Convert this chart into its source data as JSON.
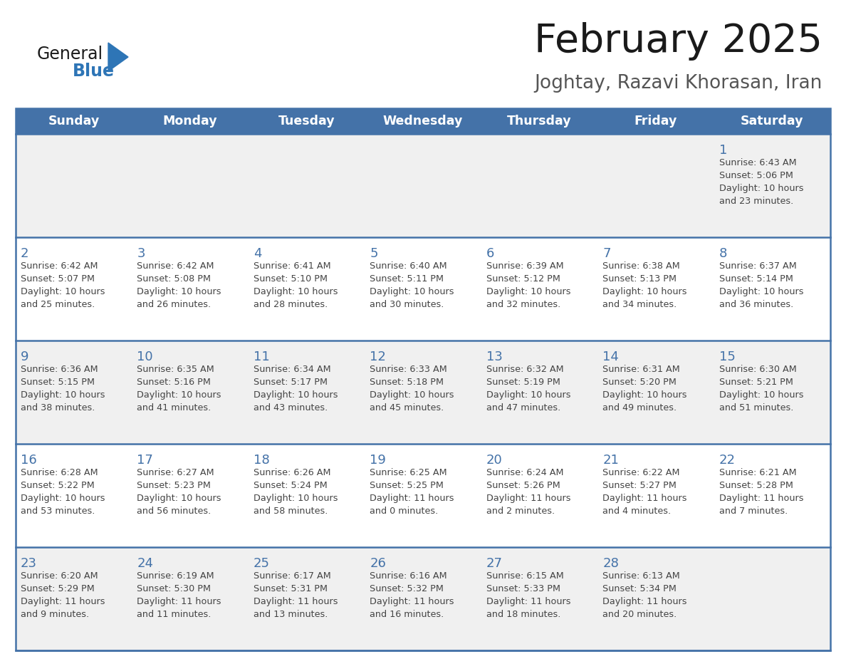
{
  "title": "February 2025",
  "subtitle": "Joghtay, Razavi Khorasan, Iran",
  "header_bg": "#4472a8",
  "header_text_color": "#ffffff",
  "cell_bg_light": "#f0f0f0",
  "cell_bg_white": "#ffffff",
  "text_color": "#444444",
  "day_num_color": "#4472a8",
  "border_color": "#4472a8",
  "days_of_week": [
    "Sunday",
    "Monday",
    "Tuesday",
    "Wednesday",
    "Thursday",
    "Friday",
    "Saturday"
  ],
  "calendar": [
    [
      null,
      null,
      null,
      null,
      null,
      null,
      {
        "day": "1",
        "sunrise": "6:43 AM",
        "sunset": "5:06 PM",
        "daylight": "10 hours",
        "daylight2": "and 23 minutes."
      }
    ],
    [
      {
        "day": "2",
        "sunrise": "6:42 AM",
        "sunset": "5:07 PM",
        "daylight": "10 hours",
        "daylight2": "and 25 minutes."
      },
      {
        "day": "3",
        "sunrise": "6:42 AM",
        "sunset": "5:08 PM",
        "daylight": "10 hours",
        "daylight2": "and 26 minutes."
      },
      {
        "day": "4",
        "sunrise": "6:41 AM",
        "sunset": "5:10 PM",
        "daylight": "10 hours",
        "daylight2": "and 28 minutes."
      },
      {
        "day": "5",
        "sunrise": "6:40 AM",
        "sunset": "5:11 PM",
        "daylight": "10 hours",
        "daylight2": "and 30 minutes."
      },
      {
        "day": "6",
        "sunrise": "6:39 AM",
        "sunset": "5:12 PM",
        "daylight": "10 hours",
        "daylight2": "and 32 minutes."
      },
      {
        "day": "7",
        "sunrise": "6:38 AM",
        "sunset": "5:13 PM",
        "daylight": "10 hours",
        "daylight2": "and 34 minutes."
      },
      {
        "day": "8",
        "sunrise": "6:37 AM",
        "sunset": "5:14 PM",
        "daylight": "10 hours",
        "daylight2": "and 36 minutes."
      }
    ],
    [
      {
        "day": "9",
        "sunrise": "6:36 AM",
        "sunset": "5:15 PM",
        "daylight": "10 hours",
        "daylight2": "and 38 minutes."
      },
      {
        "day": "10",
        "sunrise": "6:35 AM",
        "sunset": "5:16 PM",
        "daylight": "10 hours",
        "daylight2": "and 41 minutes."
      },
      {
        "day": "11",
        "sunrise": "6:34 AM",
        "sunset": "5:17 PM",
        "daylight": "10 hours",
        "daylight2": "and 43 minutes."
      },
      {
        "day": "12",
        "sunrise": "6:33 AM",
        "sunset": "5:18 PM",
        "daylight": "10 hours",
        "daylight2": "and 45 minutes."
      },
      {
        "day": "13",
        "sunrise": "6:32 AM",
        "sunset": "5:19 PM",
        "daylight": "10 hours",
        "daylight2": "and 47 minutes."
      },
      {
        "day": "14",
        "sunrise": "6:31 AM",
        "sunset": "5:20 PM",
        "daylight": "10 hours",
        "daylight2": "and 49 minutes."
      },
      {
        "day": "15",
        "sunrise": "6:30 AM",
        "sunset": "5:21 PM",
        "daylight": "10 hours",
        "daylight2": "and 51 minutes."
      }
    ],
    [
      {
        "day": "16",
        "sunrise": "6:28 AM",
        "sunset": "5:22 PM",
        "daylight": "10 hours",
        "daylight2": "and 53 minutes."
      },
      {
        "day": "17",
        "sunrise": "6:27 AM",
        "sunset": "5:23 PM",
        "daylight": "10 hours",
        "daylight2": "and 56 minutes."
      },
      {
        "day": "18",
        "sunrise": "6:26 AM",
        "sunset": "5:24 PM",
        "daylight": "10 hours",
        "daylight2": "and 58 minutes."
      },
      {
        "day": "19",
        "sunrise": "6:25 AM",
        "sunset": "5:25 PM",
        "daylight": "11 hours",
        "daylight2": "and 0 minutes."
      },
      {
        "day": "20",
        "sunrise": "6:24 AM",
        "sunset": "5:26 PM",
        "daylight": "11 hours",
        "daylight2": "and 2 minutes."
      },
      {
        "day": "21",
        "sunrise": "6:22 AM",
        "sunset": "5:27 PM",
        "daylight": "11 hours",
        "daylight2": "and 4 minutes."
      },
      {
        "day": "22",
        "sunrise": "6:21 AM",
        "sunset": "5:28 PM",
        "daylight": "11 hours",
        "daylight2": "and 7 minutes."
      }
    ],
    [
      {
        "day": "23",
        "sunrise": "6:20 AM",
        "sunset": "5:29 PM",
        "daylight": "11 hours",
        "daylight2": "and 9 minutes."
      },
      {
        "day": "24",
        "sunrise": "6:19 AM",
        "sunset": "5:30 PM",
        "daylight": "11 hours",
        "daylight2": "and 11 minutes."
      },
      {
        "day": "25",
        "sunrise": "6:17 AM",
        "sunset": "5:31 PM",
        "daylight": "11 hours",
        "daylight2": "and 13 minutes."
      },
      {
        "day": "26",
        "sunrise": "6:16 AM",
        "sunset": "5:32 PM",
        "daylight": "11 hours",
        "daylight2": "and 16 minutes."
      },
      {
        "day": "27",
        "sunrise": "6:15 AM",
        "sunset": "5:33 PM",
        "daylight": "11 hours",
        "daylight2": "and 18 minutes."
      },
      {
        "day": "28",
        "sunrise": "6:13 AM",
        "sunset": "5:34 PM",
        "daylight": "11 hours",
        "daylight2": "and 20 minutes."
      },
      null
    ]
  ],
  "logo_general_color": "#1a1a1a",
  "logo_blue_color": "#2e75b6",
  "logo_triangle_color": "#2e75b6",
  "title_color": "#1a1a1a",
  "subtitle_color": "#555555"
}
